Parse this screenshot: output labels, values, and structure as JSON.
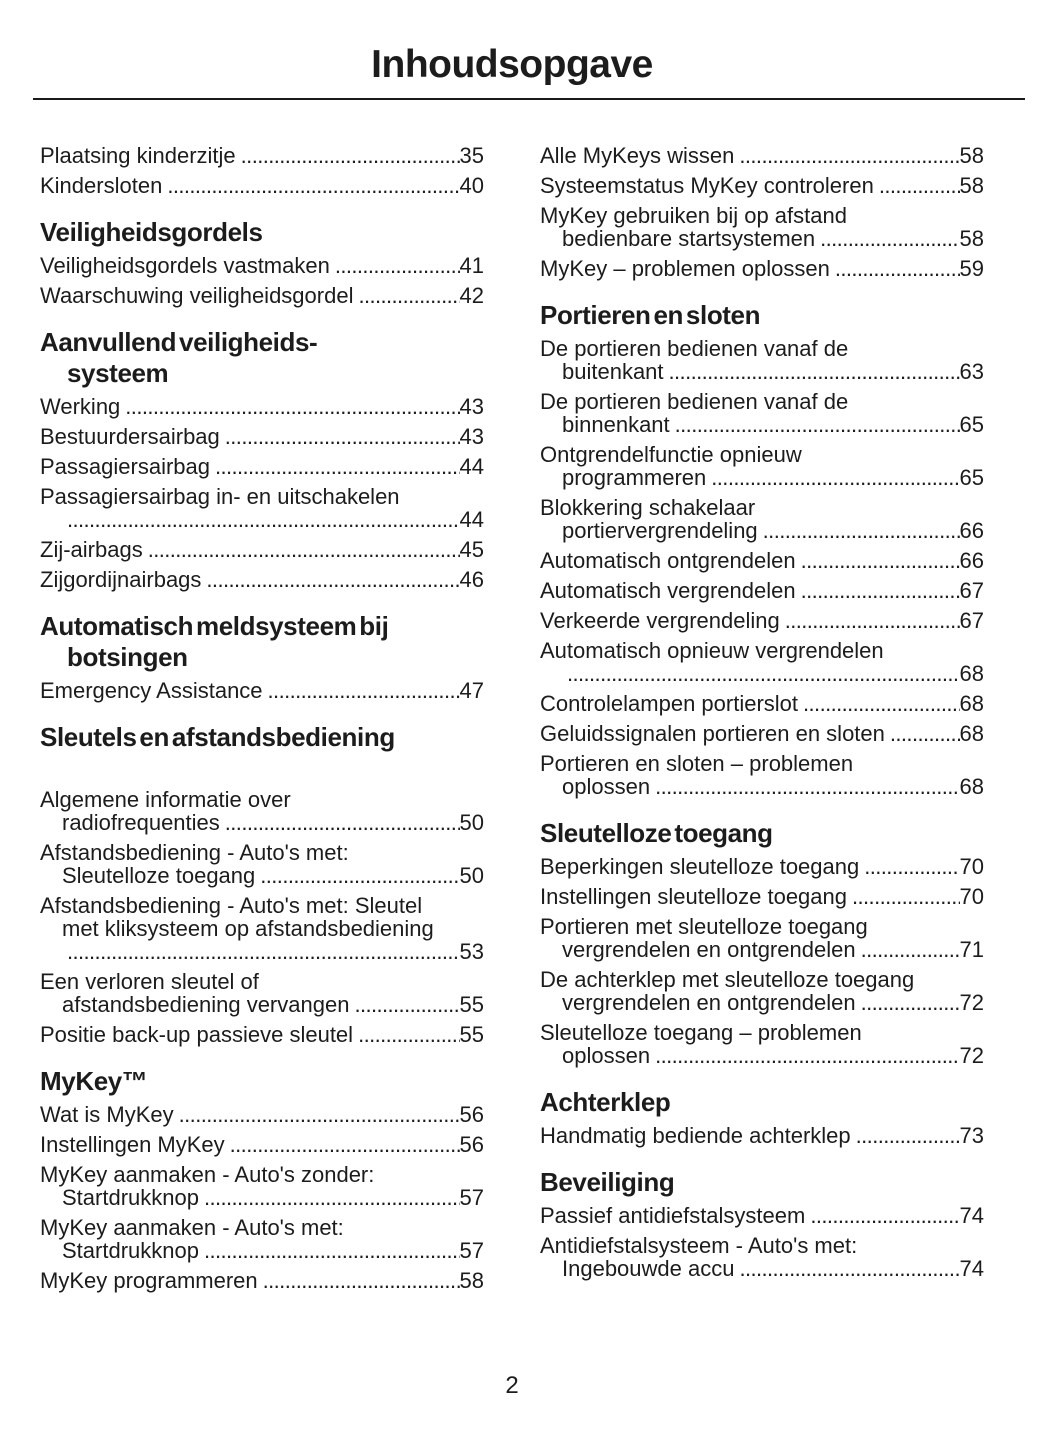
{
  "title": "Inhoudsopgave",
  "page_number": "2",
  "columns": {
    "left": [
      {
        "heading": null,
        "entries": [
          {
            "lines": [
              "Plaatsing kinderzitje"
            ],
            "page": "35"
          },
          {
            "lines": [
              "Kindersloten"
            ],
            "page": "40"
          }
        ]
      },
      {
        "heading": [
          "Veiligheidsgordels"
        ],
        "entries": [
          {
            "lines": [
              "Veiligheidsgordels vastmaken"
            ],
            "page": "41"
          },
          {
            "lines": [
              "Waarschuwing veiligheidsgordel"
            ],
            "page": "42"
          }
        ]
      },
      {
        "heading": [
          "Aanvullend veiligheids-",
          "systeem"
        ],
        "entries": [
          {
            "lines": [
              "Werking"
            ],
            "page": "43"
          },
          {
            "lines": [
              "Bestuurdersairbag"
            ],
            "page": "43"
          },
          {
            "lines": [
              "Passagiersairbag"
            ],
            "page": "44"
          },
          {
            "lines": [
              "Passagiersairbag in- en uitschakelen",
              ""
            ],
            "page": "44"
          },
          {
            "lines": [
              "Zij-airbags"
            ],
            "page": "45"
          },
          {
            "lines": [
              "Zijgordijnairbags"
            ],
            "page": "46"
          }
        ]
      },
      {
        "heading": [
          "Automatisch meldsysteem bij",
          "botsingen"
        ],
        "entries": [
          {
            "lines": [
              "Emergency Assistance"
            ],
            "page": "47"
          }
        ]
      },
      {
        "heading": [
          "Sleutels en afstandsbediening"
        ],
        "extra_space_after_heading": true,
        "entries": [
          {
            "lines": [
              "Algemene informatie over",
              "radiofrequenties"
            ],
            "page": "50"
          },
          {
            "lines": [
              "Afstandsbediening - Auto's met:",
              "Sleutelloze toegang"
            ],
            "page": "50"
          },
          {
            "lines": [
              "Afstandsbediening - Auto's met: Sleutel",
              "met kliksysteem op afstandsbediening",
              ""
            ],
            "page": "53"
          },
          {
            "lines": [
              "Een verloren sleutel of",
              "afstandsbediening vervangen"
            ],
            "page": "55"
          },
          {
            "lines": [
              "Positie back-up passieve sleutel"
            ],
            "page": "55"
          }
        ]
      },
      {
        "heading": [
          "MyKey™"
        ],
        "entries": [
          {
            "lines": [
              "Wat is MyKey"
            ],
            "page": "56"
          },
          {
            "lines": [
              "Instellingen MyKey"
            ],
            "page": "56"
          },
          {
            "lines": [
              "MyKey aanmaken - Auto's zonder:",
              "Startdrukknop"
            ],
            "page": "57"
          },
          {
            "lines": [
              "MyKey aanmaken - Auto's met:",
              "Startdrukknop"
            ],
            "page": "57"
          },
          {
            "lines": [
              "MyKey programmeren"
            ],
            "page": "58"
          }
        ]
      }
    ],
    "right": [
      {
        "heading": null,
        "entries": [
          {
            "lines": [
              "Alle MyKeys wissen"
            ],
            "page": "58"
          },
          {
            "lines": [
              "Systeemstatus MyKey controleren"
            ],
            "page": "58"
          },
          {
            "lines": [
              "MyKey gebruiken bij op afstand",
              "bedienbare startsystemen"
            ],
            "page": "58"
          },
          {
            "lines": [
              "MyKey – problemen oplossen"
            ],
            "page": "59"
          }
        ]
      },
      {
        "heading": [
          "Portieren en sloten"
        ],
        "entries": [
          {
            "lines": [
              "De portieren bedienen vanaf de",
              "buitenkant"
            ],
            "page": "63"
          },
          {
            "lines": [
              "De portieren bedienen vanaf de",
              "binnenkant"
            ],
            "page": "65"
          },
          {
            "lines": [
              "Ontgrendelfunctie opnieuw",
              "programmeren"
            ],
            "page": "65"
          },
          {
            "lines": [
              "Blokkering schakelaar",
              "portiervergrendeling"
            ],
            "page": "66"
          },
          {
            "lines": [
              "Automatisch ontgrendelen"
            ],
            "page": "66"
          },
          {
            "lines": [
              "Automatisch vergrendelen"
            ],
            "page": "67"
          },
          {
            "lines": [
              "Verkeerde vergrendeling"
            ],
            "page": "67"
          },
          {
            "lines": [
              "Automatisch opnieuw vergrendelen",
              ""
            ],
            "page": "68"
          },
          {
            "lines": [
              "Controlelampen portierslot"
            ],
            "page": "68"
          },
          {
            "lines": [
              "Geluidssignalen portieren en sloten"
            ],
            "page": "68"
          },
          {
            "lines": [
              "Portieren en sloten – problemen",
              "oplossen"
            ],
            "page": "68"
          }
        ]
      },
      {
        "heading": [
          "Sleutelloze toegang"
        ],
        "entries": [
          {
            "lines": [
              "Beperkingen sleutelloze toegang"
            ],
            "page": "70"
          },
          {
            "lines": [
              "Instellingen sleutelloze toegang"
            ],
            "page": "70"
          },
          {
            "lines": [
              "Portieren met sleutelloze toegang",
              "vergrendelen en ontgrendelen"
            ],
            "page": "71"
          },
          {
            "lines": [
              "De achterklep met sleutelloze toegang",
              "vergrendelen en ontgrendelen"
            ],
            "page": "72"
          },
          {
            "lines": [
              "Sleutelloze toegang – problemen",
              "oplossen"
            ],
            "page": "72"
          }
        ]
      },
      {
        "heading": [
          "Achterklep"
        ],
        "entries": [
          {
            "lines": [
              "Handmatig bediende achterklep"
            ],
            "page": "73"
          }
        ]
      },
      {
        "heading": [
          "Beveiliging"
        ],
        "entries": [
          {
            "lines": [
              "Passief antidiefstalsysteem"
            ],
            "page": "74"
          },
          {
            "lines": [
              "Antidiefstalsysteem - Auto's met:",
              "Ingebouwde accu"
            ],
            "page": "74"
          }
        ]
      }
    ]
  }
}
